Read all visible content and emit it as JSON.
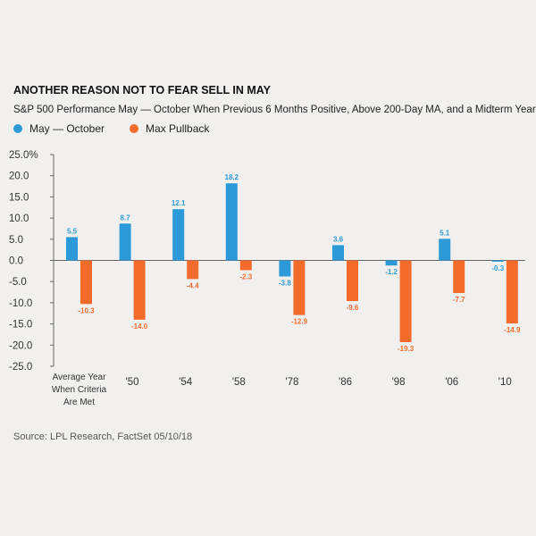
{
  "title": "ANOTHER REASON NOT TO FEAR SELL IN MAY",
  "subtitle": "S&P 500 Performance May — October When Previous 6 Months Positive, Above 200-Day MA, and a Midterm Year",
  "source": "Source: LPL Research, FactSet 05/10/18",
  "colors": {
    "series1": "#2c9ad8",
    "series2": "#f36c2b",
    "axis": "#666666"
  },
  "chart_data": {
    "type": "bar",
    "categories": [
      [
        "Average Year",
        "When Criteria",
        "Are Met"
      ],
      [
        "'50"
      ],
      [
        "'54"
      ],
      [
        "'58"
      ],
      [
        "'78"
      ],
      [
        "'86"
      ],
      [
        "'98"
      ],
      [
        "'06"
      ],
      [
        "'10"
      ]
    ],
    "series": [
      {
        "name": "May — October",
        "values": [
          5.5,
          8.7,
          12.1,
          18.2,
          -3.8,
          3.6,
          -1.2,
          5.1,
          -0.3
        ],
        "labels": [
          "5.5",
          "8.7",
          "12.1",
          "18.2",
          "-3.8",
          "3.6",
          "-1.2",
          "5.1",
          "-0.3"
        ]
      },
      {
        "name": "Max Pullback",
        "values": [
          -10.3,
          -14.0,
          -4.4,
          -2.3,
          -12.9,
          -9.6,
          -19.3,
          -7.7,
          -14.9
        ],
        "labels": [
          "-10.3",
          "-14.0",
          "-4.4",
          "-2.3",
          "-12.9",
          "-9.6",
          "-19.3",
          "-7.7",
          "-14.9"
        ]
      }
    ],
    "ylim": [
      -25,
      25
    ],
    "yticks": [
      25,
      20,
      15,
      10,
      5,
      0,
      -5,
      -10,
      -15,
      -20,
      -25
    ],
    "ytick_labels": [
      "25.0%",
      "20.0",
      "15.0",
      "10.0",
      "5.0",
      "0.0",
      "-5.0",
      "-10.0",
      "-15.0",
      "-20.0",
      "-25.0"
    ],
    "legend_position": "top-left",
    "grid": false
  }
}
